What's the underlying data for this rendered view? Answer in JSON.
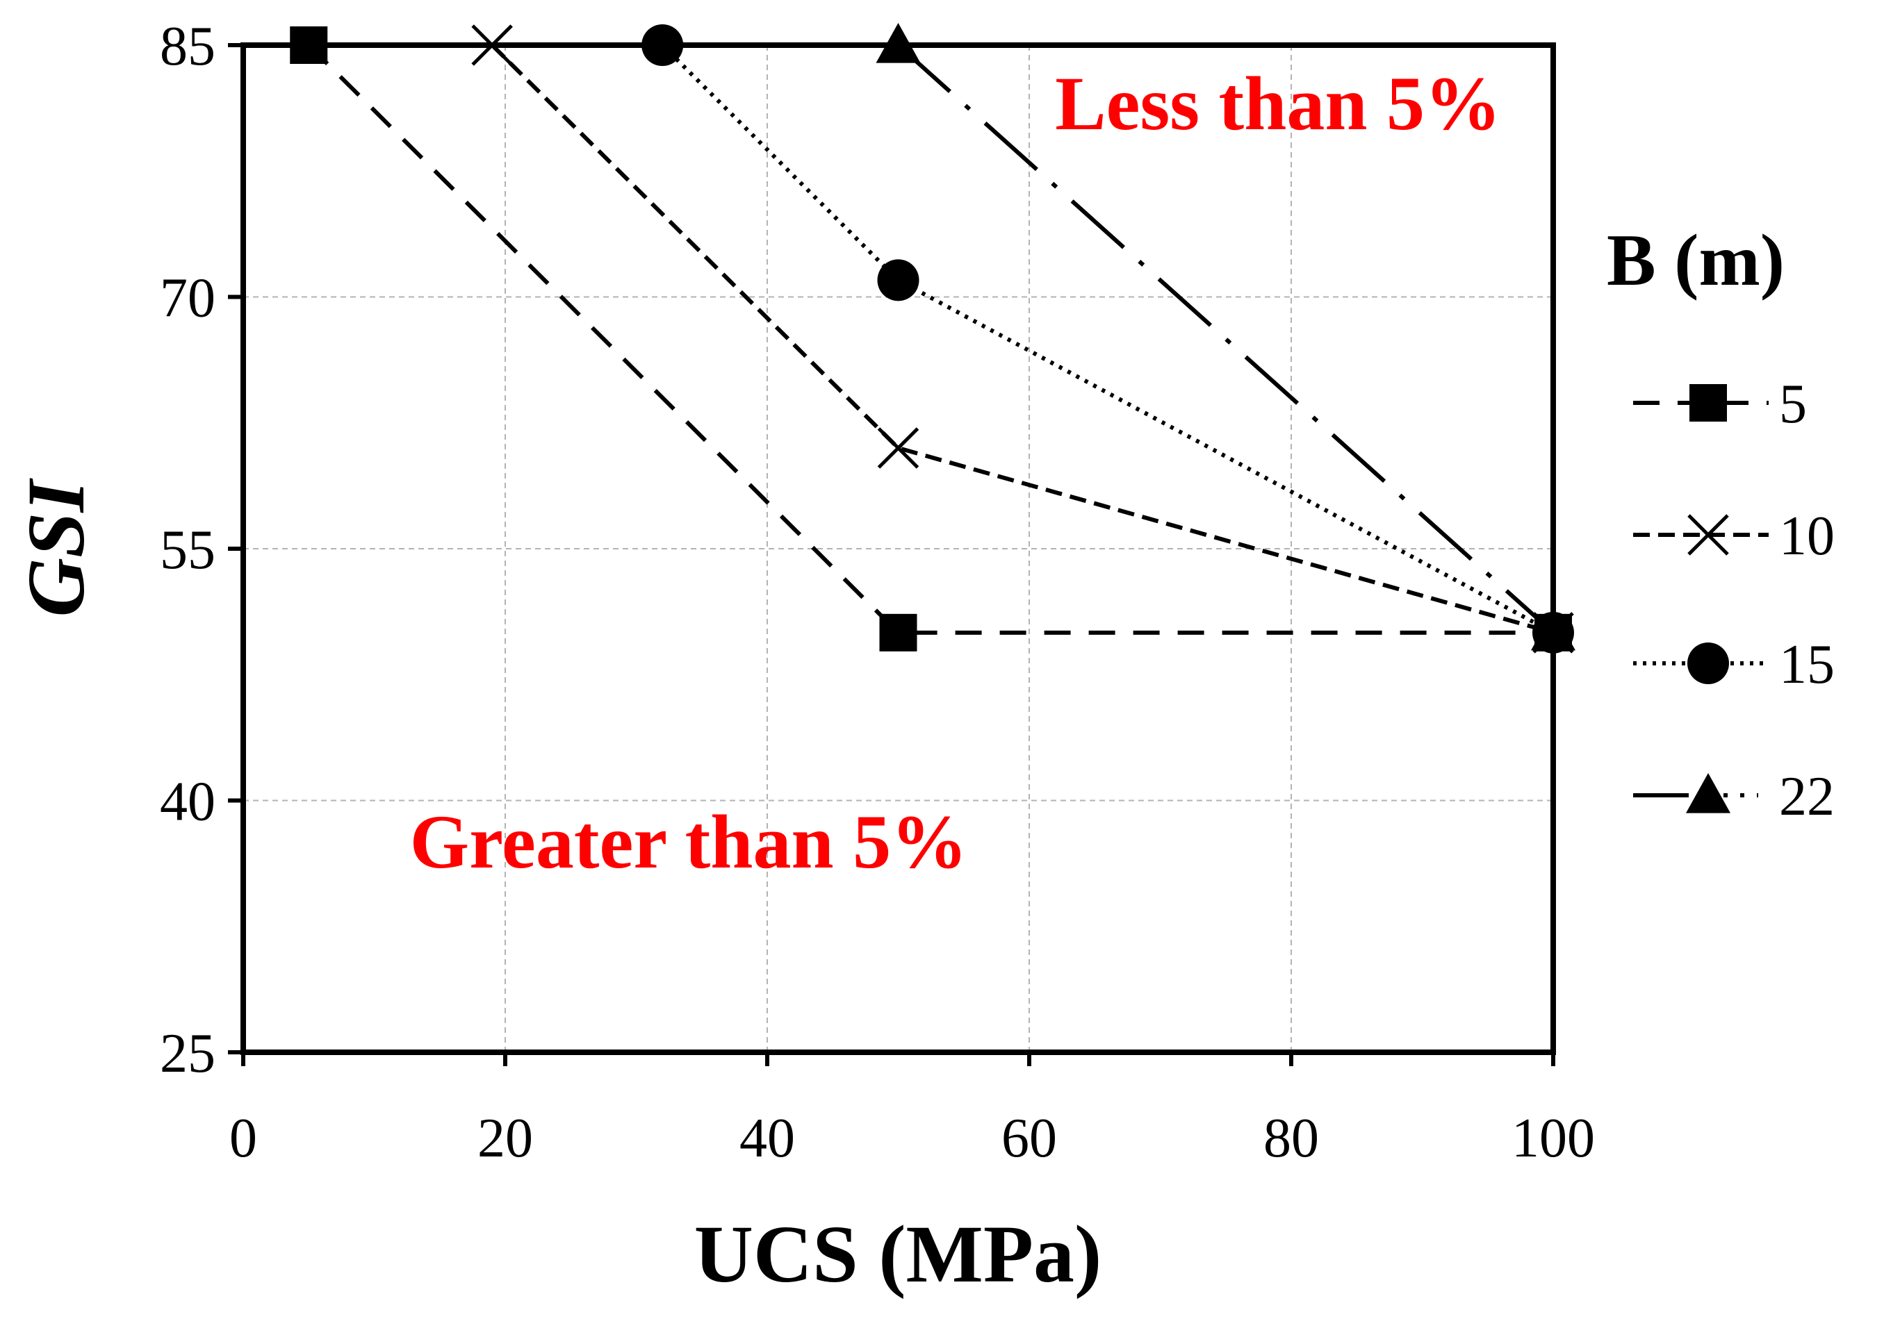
{
  "chart_data": {
    "type": "line",
    "xlabel": "UCS (MPa)",
    "ylabel": "GSI",
    "xlim": [
      0,
      100
    ],
    "ylim": [
      25,
      85
    ],
    "xticks": [
      0,
      20,
      40,
      60,
      80,
      100
    ],
    "yticks": [
      25,
      40,
      55,
      70,
      85
    ],
    "grid": true,
    "legend_title": "B (m)",
    "legend_position": "right",
    "annotations": [
      {
        "text": "Less than 5%",
        "color": "#ff0000",
        "x": 79,
        "y": 80
      },
      {
        "text": "Greater than 5%",
        "color": "#ff0000",
        "x": 34,
        "y": 36
      }
    ],
    "series": [
      {
        "name": "5",
        "marker": "square",
        "dash": "long-dash",
        "x": [
          5,
          50,
          100
        ],
        "y": [
          85,
          50,
          50
        ]
      },
      {
        "name": "10",
        "marker": "x",
        "dash": "short-dash",
        "x": [
          19,
          50,
          100
        ],
        "y": [
          85,
          61,
          50
        ]
      },
      {
        "name": "15",
        "marker": "circle",
        "dash": "dotted",
        "x": [
          32,
          50,
          100
        ],
        "y": [
          85,
          71,
          50
        ]
      },
      {
        "name": "22",
        "marker": "triangle",
        "dash": "long-dash-dot",
        "x": [
          50,
          100
        ],
        "y": [
          85,
          50
        ]
      }
    ]
  }
}
